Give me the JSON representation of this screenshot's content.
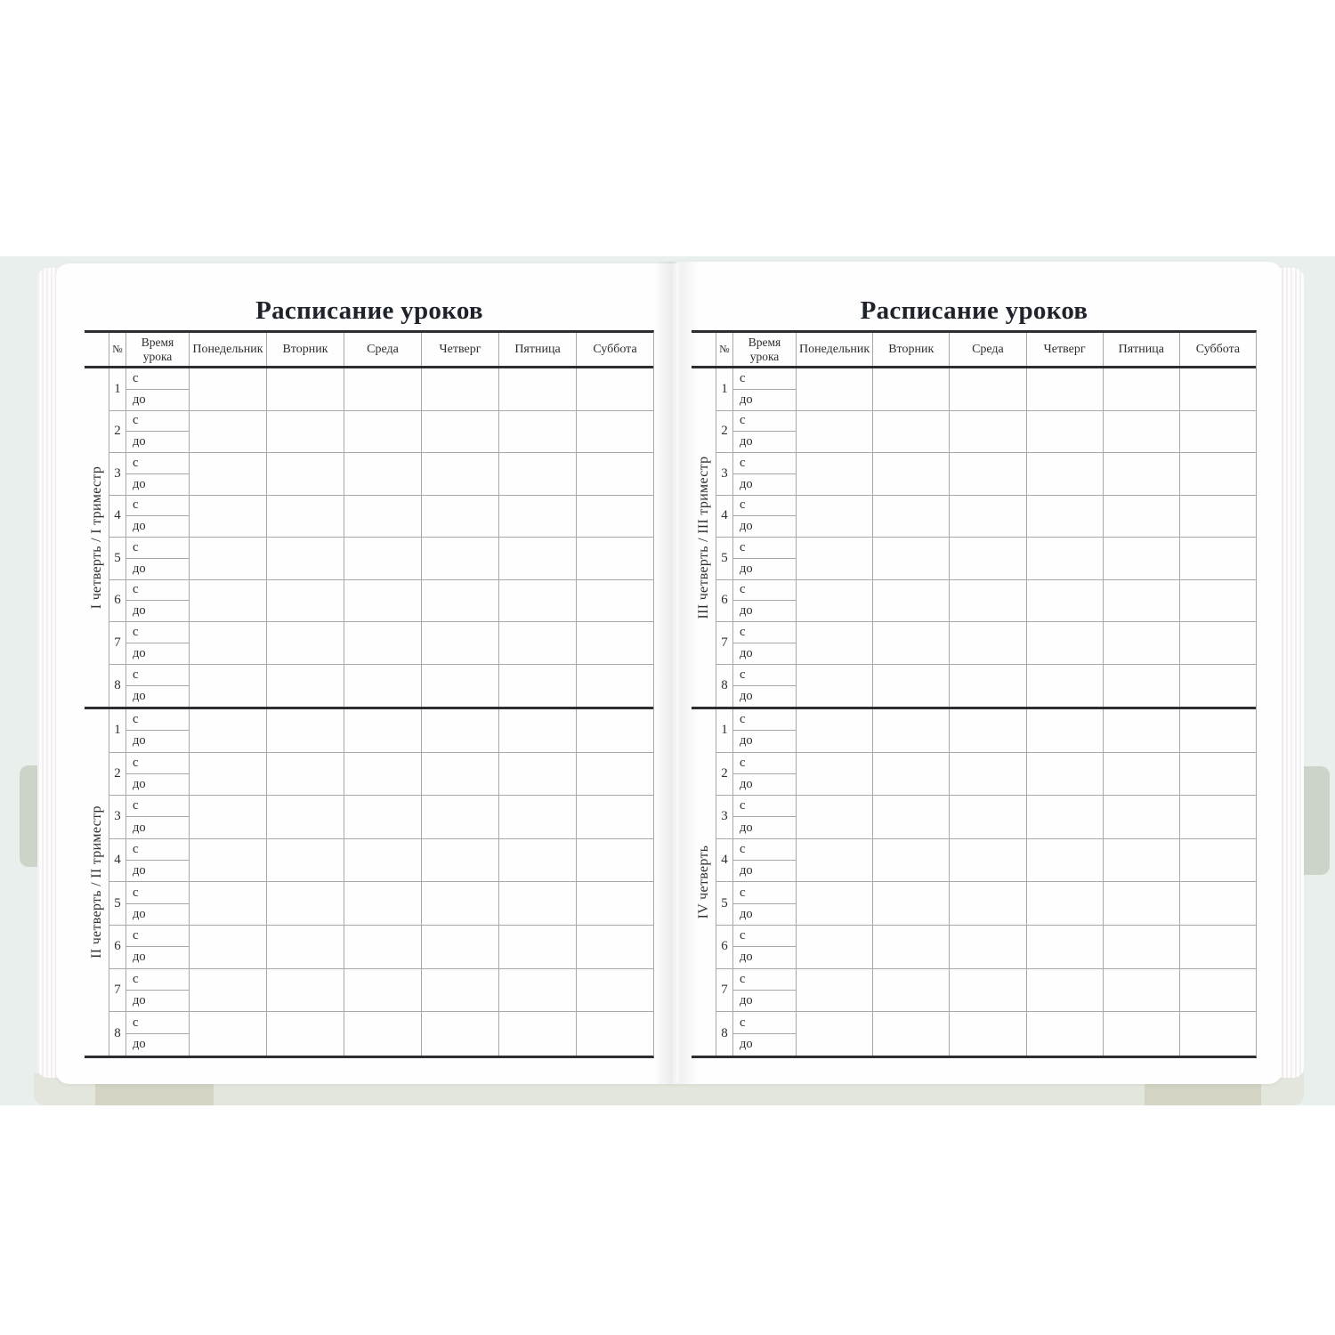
{
  "colors": {
    "thin_line": "#a8a8a8",
    "thick_line": "#2b2d31",
    "text": "#2d2d2d",
    "page": "#fefefe",
    "backdrop": "#e9efed",
    "cover_band": "#e2e6dc",
    "cover_patch": "#d3d4c3"
  },
  "table_template": {
    "number_header": "№",
    "time_header_line1": "Время",
    "time_header_line2": "урока",
    "days": [
      "Понедельник",
      "Вторник",
      "Среда",
      "Четверг",
      "Пятница",
      "Суббота"
    ],
    "lesson_numbers": [
      "1",
      "2",
      "3",
      "4",
      "5",
      "6",
      "7",
      "8"
    ],
    "time_from_label": "с",
    "time_to_label": "до"
  },
  "pages": [
    {
      "title": "Расписание уроков",
      "sections": [
        {
          "label": "I четверть / I триместр"
        },
        {
          "label": "II четверть / II триместр"
        }
      ]
    },
    {
      "title": "Расписание уроков",
      "sections": [
        {
          "label": "III четверть / III триместр"
        },
        {
          "label": "IV четверть"
        }
      ]
    }
  ]
}
